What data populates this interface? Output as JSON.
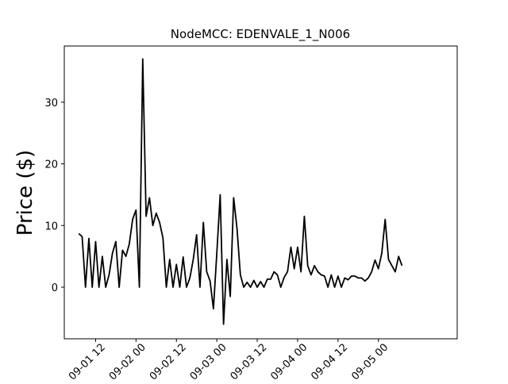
{
  "chart_data": {
    "type": "line",
    "title": "NodeMCC: EDENVALE_1_N006",
    "y_label": "Price ($)",
    "x": [
      7,
      8,
      9,
      10,
      11,
      12,
      13,
      14,
      15,
      16,
      17,
      18,
      19,
      20,
      21,
      22,
      23,
      24,
      25,
      26,
      27,
      28,
      29,
      30,
      31,
      32,
      33,
      34,
      35,
      36,
      37,
      38,
      39,
      40,
      41,
      42,
      43,
      44,
      45,
      46,
      47,
      48,
      49,
      50,
      51,
      52,
      53,
      54,
      55,
      56,
      57,
      58,
      59,
      60,
      61,
      62,
      63,
      64,
      65,
      66,
      67,
      68,
      69,
      70,
      71,
      72,
      73,
      74,
      75,
      76,
      77,
      78,
      79,
      80,
      81,
      82,
      83,
      84,
      85,
      86,
      87,
      88,
      89,
      90,
      91,
      92,
      93,
      94,
      95,
      96,
      97,
      98,
      99,
      100,
      101,
      102,
      103
    ],
    "series": [
      {
        "name": "EDENVALE_1_N006",
        "color": "#000000",
        "values": [
          8.7,
          8.2,
          0,
          7.9,
          0,
          7.4,
          0,
          5.0,
          0,
          2.0,
          5.5,
          7.4,
          0,
          6.0,
          5.0,
          7.0,
          11.0,
          12.5,
          0,
          37.0,
          11.5,
          14.5,
          10.0,
          12.0,
          10.5,
          8.0,
          0,
          4.5,
          0,
          3.7,
          0,
          4.9,
          0,
          1.5,
          4.5,
          8.5,
          0,
          10.5,
          2.5,
          1.0,
          -3.5,
          5.5,
          15.0,
          -6.0,
          4.5,
          -1.5,
          14.5,
          9.5,
          2.0,
          0,
          0.8,
          0,
          1.1,
          0,
          0.9,
          0,
          1.3,
          1.3,
          2.5,
          2.0,
          0,
          1.6,
          2.5,
          6.5,
          3.0,
          6.5,
          2.5,
          11.5,
          3.5,
          2.0,
          3.5,
          2.5,
          2.0,
          1.8,
          0,
          2.0,
          0,
          1.8,
          0,
          1.5,
          1.2,
          1.8,
          1.8,
          1.5,
          1.5,
          1.0,
          1.5,
          2.5,
          4.4,
          3.0,
          5.5,
          11.0,
          4.5,
          3.5,
          2.5,
          5.0,
          3.5
        ]
      }
    ],
    "xlim": [
      2.7,
      119.4
    ],
    "ylim": [
      -8.36,
      39.1
    ],
    "xticks": [
      {
        "value": 12,
        "label": "09-01 12"
      },
      {
        "value": 24,
        "label": "09-02 00"
      },
      {
        "value": 36,
        "label": "09-02 12"
      },
      {
        "value": 48,
        "label": "09-03 00"
      },
      {
        "value": 60,
        "label": "09-03 12"
      },
      {
        "value": 72,
        "label": "09-04 00"
      },
      {
        "value": 84,
        "label": "09-04 12"
      },
      {
        "value": 96,
        "label": "09-05 00"
      }
    ],
    "yticks": [
      0,
      10,
      20,
      30
    ],
    "grid": false
  }
}
